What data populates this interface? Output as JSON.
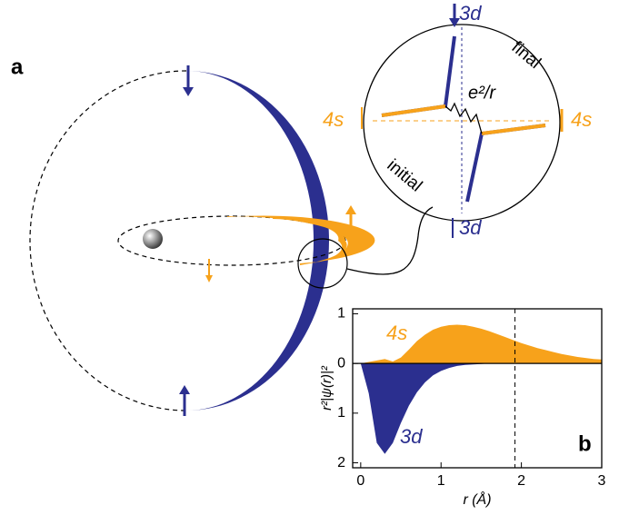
{
  "diagram": {
    "panel_label": "a",
    "top_label": "3d",
    "bottom_label": "3d",
    "left_label": "4s",
    "right_label": "4s",
    "final_label": "final",
    "initial_label": "initial",
    "interaction_label": "e²/r"
  },
  "chart_data": {
    "type": "area",
    "panel_label": "b",
    "x_label": "r (Å)",
    "y_label": "r²|ψ(r)|²",
    "x": [
      0,
      0.1,
      0.2,
      0.3,
      0.4,
      0.5,
      0.6,
      0.7,
      0.8,
      0.9,
      1.0,
      1.1,
      1.2,
      1.3,
      1.4,
      1.5,
      1.6,
      1.7,
      1.8,
      1.9,
      2.0,
      2.1,
      2.2,
      2.3,
      2.4,
      2.5,
      2.6,
      2.7,
      2.8,
      2.9,
      3.0
    ],
    "series": [
      {
        "name": "4s",
        "color": "#f7a21b",
        "values": [
          0,
          0.03,
          0.06,
          0.09,
          0.04,
          0.12,
          0.28,
          0.45,
          0.58,
          0.68,
          0.74,
          0.77,
          0.78,
          0.77,
          0.74,
          0.7,
          0.65,
          0.59,
          0.53,
          0.47,
          0.41,
          0.36,
          0.31,
          0.27,
          0.23,
          0.19,
          0.16,
          0.13,
          0.11,
          0.09,
          0.08
        ]
      },
      {
        "name": "3d",
        "color": "#2b2f8f",
        "values": [
          0,
          -0.6,
          -1.6,
          -1.82,
          -1.6,
          -1.2,
          -0.85,
          -0.58,
          -0.38,
          -0.24,
          -0.15,
          -0.09,
          -0.05,
          -0.03,
          -0.02,
          -0.01,
          0,
          0,
          0,
          0,
          0,
          0,
          0,
          0,
          0,
          0,
          0,
          0,
          0,
          0,
          0
        ]
      }
    ],
    "vline": 1.92,
    "xlim": [
      -0.1,
      3
    ],
    "xticks": [
      0,
      1,
      2,
      3
    ],
    "ylim": [
      -2.1,
      1.1
    ],
    "yticks": [
      {
        "value": -2,
        "label": "2"
      },
      {
        "value": -1,
        "label": "1"
      },
      0,
      1
    ]
  }
}
